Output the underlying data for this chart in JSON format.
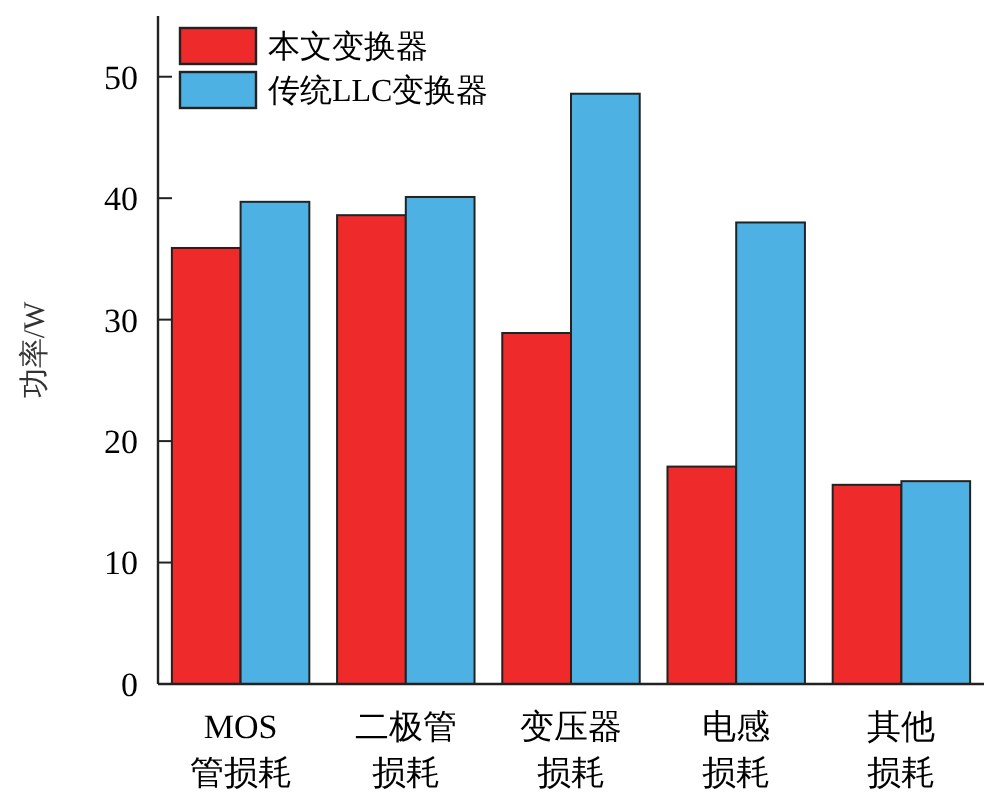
{
  "chart_data": {
    "type": "bar",
    "ylabel": "功率/W",
    "categories": [
      "MOS\n管损耗",
      "二极管损耗",
      "变压器损耗",
      "电感损耗",
      "其他损耗"
    ],
    "series": [
      {
        "name": "本文变换器",
        "color": "#ee2a2a",
        "values": [
          35.9,
          38.6,
          28.9,
          17.9,
          16.4
        ]
      },
      {
        "name": "传统LLC变换器",
        "color": "#4eb1e3",
        "values": [
          39.7,
          40.1,
          48.6,
          38.0,
          16.7
        ]
      }
    ],
    "ylim": [
      0,
      55
    ],
    "yticks": [
      0,
      10,
      20,
      30,
      40,
      50
    ],
    "grid": false,
    "legend": "top left"
  }
}
